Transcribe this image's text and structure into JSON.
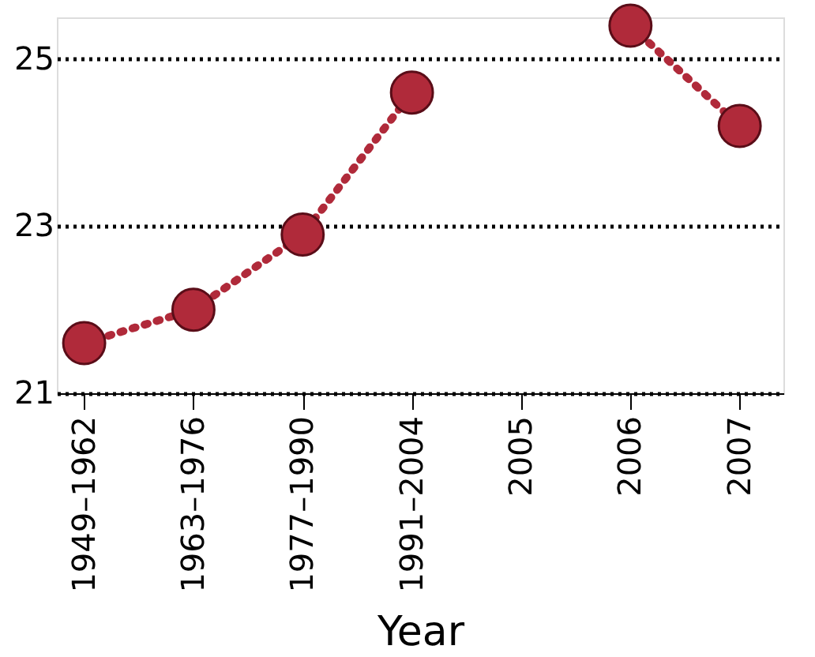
{
  "chart_data": {
    "type": "line",
    "xlabel": "Year",
    "categories": [
      "1949–1962",
      "1963–1976",
      "1977–1990",
      "1991–2004",
      "2005",
      "2006",
      "2007"
    ],
    "series": [
      {
        "color": "#b02a3a",
        "values": [
          21.6,
          22.0,
          22.9,
          24.6,
          null,
          25.4,
          24.2
        ]
      }
    ],
    "ylim": [
      21,
      25.5
    ],
    "yticks": [
      21,
      23,
      25
    ],
    "grid": "y",
    "marker": "circle",
    "line_style": "dotted"
  }
}
